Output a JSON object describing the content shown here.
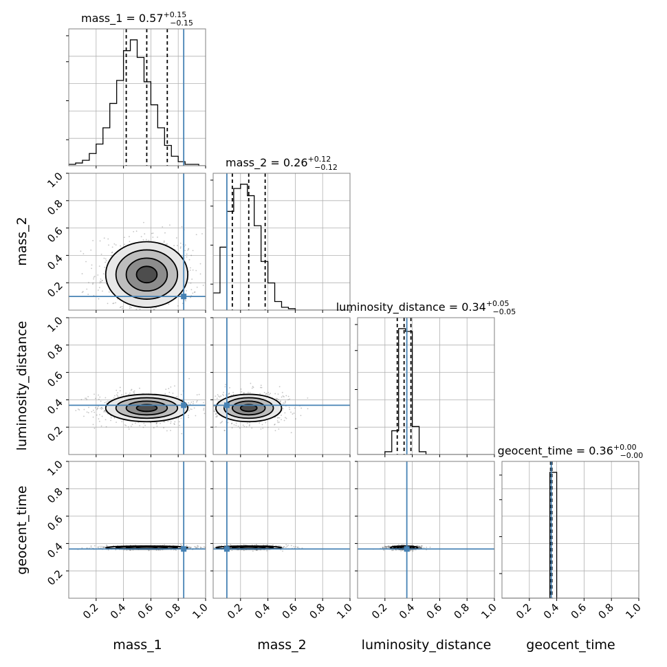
{
  "colors": {
    "truth": "#4682b4",
    "grid": "#b0b0b0",
    "hist": "#000000",
    "frame": "#7f7f7f",
    "density": "#000000"
  },
  "chart_data": {
    "type": "corner",
    "parameters": [
      "mass_1",
      "mass_2",
      "luminosity_distance",
      "geocent_time"
    ],
    "axis_range": [
      0,
      1
    ],
    "tick_values": [
      0.2,
      0.4,
      0.6,
      0.8,
      1.0
    ],
    "tick_labels": [
      "0.2",
      "0.4",
      "0.6",
      "0.8",
      "1.0"
    ],
    "grid": true,
    "truth": {
      "mass_1": 0.84,
      "mass_2": 0.1,
      "luminosity_distance": 0.36,
      "geocent_time": 0.36
    },
    "titles": [
      {
        "parameter": "mass_1",
        "prefix": "mass_1 = ",
        "median": "0.57",
        "plus": "+0.15",
        "minus": "−0.15"
      },
      {
        "parameter": "mass_2",
        "prefix": "mass_2 = ",
        "median": "0.26",
        "plus": "+0.12",
        "minus": "−0.12"
      },
      {
        "parameter": "luminosity_distance",
        "prefix": "luminosity_distance = ",
        "median": "0.34",
        "plus": "+0.05",
        "minus": "−0.05"
      },
      {
        "parameter": "geocent_time",
        "prefix": "geocent_time = ",
        "median": "0.36",
        "plus": "+0.00",
        "minus": "−0.00"
      }
    ],
    "histograms": [
      {
        "parameter": "mass_1",
        "bins": 20,
        "counts": [
          0.01,
          0.02,
          0.04,
          0.09,
          0.16,
          0.28,
          0.46,
          0.63,
          0.85,
          0.93,
          0.8,
          0.62,
          0.45,
          0.28,
          0.15,
          0.07,
          0.03,
          0.01,
          0.01,
          0.0
        ],
        "quantiles": [
          0.42,
          0.57,
          0.72
        ]
      },
      {
        "parameter": "mass_2",
        "bins": 20,
        "counts": [
          0.12,
          0.44,
          0.69,
          0.85,
          0.88,
          0.8,
          0.59,
          0.34,
          0.19,
          0.06,
          0.02,
          0.01,
          0.0,
          0.0,
          0.0,
          0.0,
          0.0,
          0.0,
          0.0,
          0.0
        ],
        "quantiles": [
          0.14,
          0.26,
          0.38
        ]
      },
      {
        "parameter": "luminosity_distance",
        "bins": 20,
        "counts": [
          0.0,
          0.0,
          0.0,
          0.0,
          0.02,
          0.17,
          0.9,
          0.88,
          0.2,
          0.02,
          0.0,
          0.0,
          0.0,
          0.0,
          0.0,
          0.0,
          0.0,
          0.0,
          0.0,
          0.0
        ],
        "quantiles": [
          0.29,
          0.34,
          0.39
        ]
      },
      {
        "parameter": "geocent_time",
        "bins": 20,
        "counts": [
          0,
          0,
          0,
          0,
          0,
          0,
          0,
          0.96,
          0,
          0,
          0,
          0,
          0,
          0,
          0,
          0,
          0,
          0,
          0,
          0
        ],
        "quantiles": [
          0.355,
          0.36,
          0.365
        ]
      }
    ],
    "posteriors": [
      {
        "x": "mass_1",
        "y": "mass_2",
        "mean": [
          0.57,
          0.26
        ],
        "sd": [
          0.15,
          0.12
        ]
      },
      {
        "x": "mass_1",
        "y": "luminosity_distance",
        "mean": [
          0.57,
          0.34
        ],
        "sd": [
          0.15,
          0.05
        ]
      },
      {
        "x": "mass_2",
        "y": "luminosity_distance",
        "mean": [
          0.26,
          0.34
        ],
        "sd": [
          0.12,
          0.05
        ]
      },
      {
        "x": "mass_1",
        "y": "geocent_time",
        "mean": [
          0.57,
          0.37
        ],
        "sd": [
          0.15,
          0.006
        ]
      },
      {
        "x": "mass_2",
        "y": "geocent_time",
        "mean": [
          0.26,
          0.37
        ],
        "sd": [
          0.12,
          0.006
        ]
      },
      {
        "x": "luminosity_distance",
        "y": "geocent_time",
        "mean": [
          0.34,
          0.37
        ],
        "sd": [
          0.05,
          0.006
        ]
      }
    ]
  }
}
